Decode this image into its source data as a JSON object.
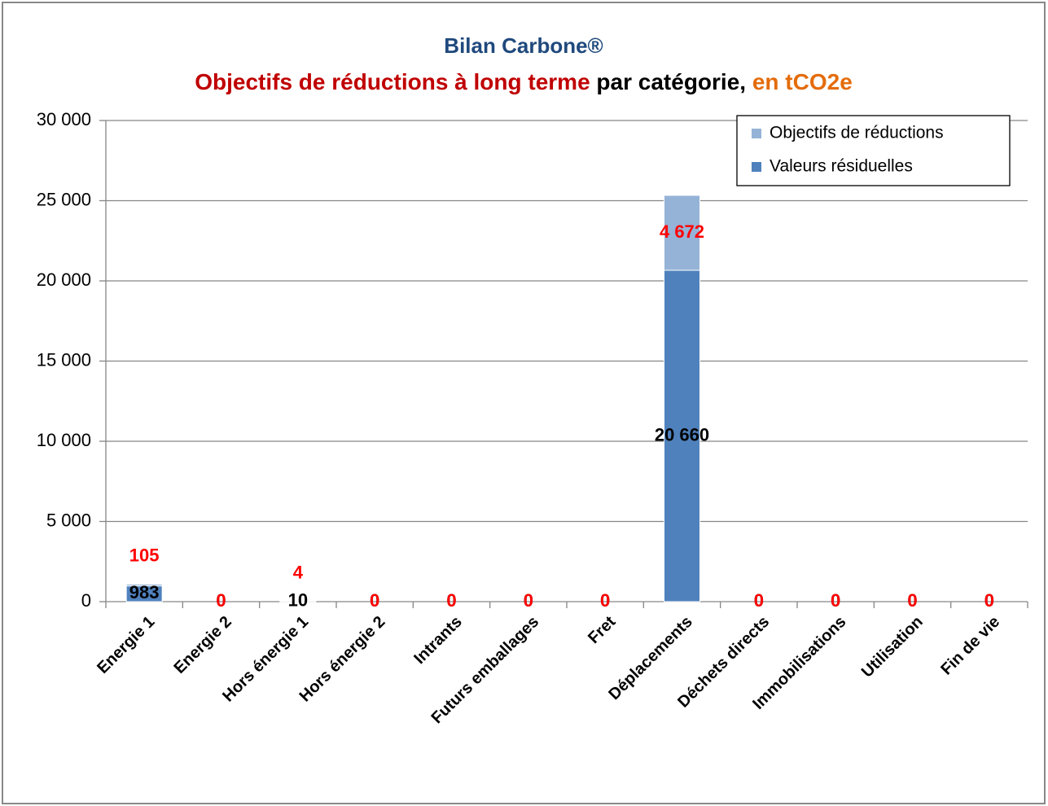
{
  "chart_data": {
    "type": "stacked_bar",
    "title": "Bilan Carbone®",
    "title_color": "#1f497d",
    "subtitle": [
      {
        "text": "Objectifs de réductions à long terme",
        "color": "#c00000"
      },
      {
        "text": " par catégorie,",
        "color": "#000000"
      },
      {
        "text": " en tCO2e",
        "color": "#e46c0a"
      }
    ],
    "categories": [
      "Energie 1",
      "Energie 2",
      "Hors énergie 1",
      "Hors énergie 2",
      "Intrants",
      "Futurs emballages",
      "Fret",
      "Déplacements",
      "Déchets directs",
      "Immobilisations",
      "Utilisation",
      "Fin de vie"
    ],
    "series": [
      {
        "name": "Valeurs résiduelles",
        "color": "#4f81bd",
        "label_color": "#000000",
        "values": [
          983,
          0,
          10,
          0,
          0,
          0,
          0,
          20660,
          0,
          0,
          0,
          0
        ],
        "value_labels": [
          "983",
          "0",
          "10",
          "0",
          "0",
          "0",
          "0",
          "20 660",
          "0",
          "0",
          "0",
          "0"
        ]
      },
      {
        "name": "Objectifs de réductions",
        "color": "#95b3d7",
        "label_color": "#ff0000",
        "values": [
          105,
          0,
          4,
          0,
          0,
          0,
          0,
          4672,
          0,
          0,
          0,
          0
        ],
        "value_labels": [
          "105",
          "0",
          "4",
          "0",
          "0",
          "0",
          "0",
          "4 672",
          "0",
          "0",
          "0",
          "0"
        ]
      }
    ],
    "ylim": [
      0,
      30000
    ],
    "yticks": [
      0,
      {
        "value": 5000,
        "label": "5 000"
      },
      {
        "value": 10000,
        "label": "10 000"
      },
      {
        "value": 15000,
        "label": "15 000"
      },
      {
        "value": 20000,
        "label": "20 000"
      },
      {
        "value": 25000,
        "label": "25 000"
      },
      {
        "value": 30000,
        "label": "30 000"
      }
    ],
    "grid": true,
    "legend": "top-right"
  }
}
